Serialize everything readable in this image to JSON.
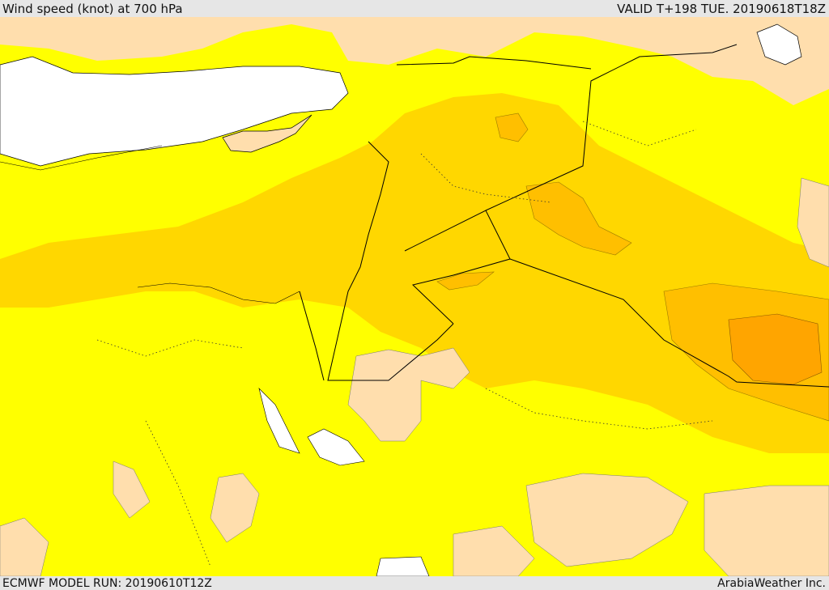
{
  "header": {
    "title": "Wind speed (knot) at 700 hPa",
    "valid_time": "VALID T+198 TUE. 20190618T18Z"
  },
  "footer": {
    "model_run": "ECMWF MODEL RUN: 20190610T12Z",
    "provider": "ArabiaWeather Inc."
  },
  "map": {
    "colors": {
      "sea": "#ffffff",
      "band_1": "#ffdead",
      "band_2": "#ffff00",
      "band_3": "#ffd700",
      "band_4": "#ffbf00",
      "band_5": "#ffa500",
      "border": "#000000"
    }
  }
}
